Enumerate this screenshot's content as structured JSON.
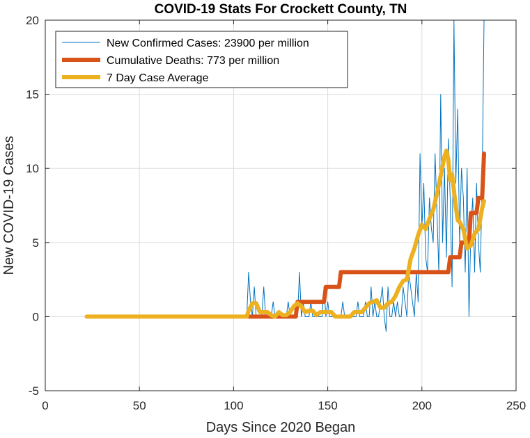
{
  "chart_data": {
    "type": "line",
    "title": "COVID-19 Stats For Crockett County, TN",
    "xlabel": "Days Since 2020 Began",
    "ylabel": "New COVID-19 Cases",
    "xlim": [
      0,
      250
    ],
    "ylim": [
      -5,
      20
    ],
    "xticks": [
      0,
      50,
      100,
      150,
      200,
      250
    ],
    "yticks": [
      -5,
      0,
      5,
      10,
      15,
      20
    ],
    "grid": true,
    "legend_position": "top-left",
    "colors": {
      "cases": "#0072BD",
      "deaths": "#D95319",
      "average": "#EDB120",
      "grid": "#dddddd",
      "axis": "#262626"
    },
    "series": [
      {
        "name": "New Confirmed Cases: 23900 per million",
        "color": "#0072BD",
        "x": [
          22,
          107,
          108,
          109,
          110,
          111,
          112,
          113,
          114,
          115,
          116,
          117,
          118,
          119,
          120,
          121,
          122,
          123,
          124,
          125,
          126,
          127,
          128,
          129,
          130,
          131,
          132,
          133,
          134,
          135,
          136,
          137,
          138,
          139,
          140,
          141,
          142,
          143,
          144,
          145,
          146,
          147,
          148,
          149,
          150,
          151,
          152,
          153,
          154,
          155,
          156,
          157,
          158,
          159,
          160,
          161,
          162,
          163,
          164,
          165,
          166,
          167,
          168,
          169,
          170,
          171,
          172,
          173,
          174,
          175,
          176,
          177,
          178,
          179,
          180,
          181,
          182,
          183,
          184,
          185,
          186,
          187,
          188,
          189,
          190,
          191,
          192,
          193,
          194,
          195,
          196,
          197,
          198,
          199,
          200,
          201,
          202,
          203,
          204,
          205,
          206,
          207,
          208,
          209,
          210,
          211,
          212,
          213,
          214,
          215,
          216,
          217,
          218,
          219,
          220,
          221,
          222,
          223,
          224,
          225,
          226,
          227,
          228,
          229,
          230,
          231,
          232,
          233
        ],
        "y": [
          0,
          0,
          3,
          1,
          0,
          2,
          0,
          0,
          0,
          0,
          2,
          0,
          0,
          0,
          0,
          1,
          0,
          0,
          0,
          0,
          0,
          0,
          0,
          1,
          0,
          0,
          0,
          0,
          0,
          3,
          0,
          1,
          0,
          0,
          0,
          1,
          0,
          0,
          0,
          0,
          0,
          0,
          2,
          0,
          1,
          0,
          0,
          0,
          0,
          0,
          0,
          0,
          1,
          0,
          0,
          0,
          0,
          0,
          0,
          0,
          1,
          0,
          0,
          0,
          1,
          0,
          0,
          2,
          0,
          1,
          0,
          0,
          1,
          2,
          0,
          -1,
          2,
          0,
          0,
          1,
          0,
          1,
          0,
          0,
          2,
          1,
          0,
          3,
          2,
          1,
          0,
          3,
          1,
          11,
          6,
          9,
          4,
          3,
          8,
          6,
          5,
          11,
          7,
          3,
          15,
          5,
          10,
          4,
          12,
          8,
          2,
          20,
          9,
          14,
          5,
          10,
          8,
          3,
          10,
          0,
          6,
          8,
          3,
          9,
          5,
          3,
          9,
          20
        ]
      },
      {
        "name": "Cumulative Deaths: 773 per million",
        "color": "#D95319",
        "x": [
          108,
          124,
          125,
          133,
          134,
          148,
          149,
          156,
          157,
          214,
          215,
          220,
          221,
          225,
          226,
          229,
          230,
          232,
          233
        ],
        "y": [
          0,
          0,
          0,
          0,
          1,
          1,
          2,
          2,
          3,
          3,
          4,
          4,
          5,
          5,
          7,
          7,
          8,
          8,
          11
        ]
      },
      {
        "name": "7 Day Case Average",
        "color": "#EDB120",
        "x": [
          22,
          107,
          108,
          110,
          112,
          114,
          116,
          118,
          120,
          122,
          124,
          126,
          128,
          130,
          132,
          134,
          136,
          138,
          140,
          142,
          144,
          146,
          148,
          150,
          152,
          154,
          156,
          158,
          160,
          162,
          164,
          166,
          168,
          170,
          172,
          174,
          176,
          178,
          180,
          182,
          184,
          186,
          188,
          190,
          192,
          194,
          196,
          198,
          200,
          202,
          204,
          206,
          208,
          210,
          212,
          213,
          214,
          215,
          216,
          218,
          219,
          220,
          222,
          224,
          226,
          228,
          230,
          232,
          233
        ],
        "y": [
          0,
          0,
          0.4,
          0.9,
          0.9,
          0.3,
          0.3,
          0.3,
          0.1,
          0,
          0.3,
          0.1,
          0.1,
          0.3,
          0.7,
          0.9,
          0.7,
          0.3,
          0.4,
          0.4,
          0.1,
          0.3,
          0.3,
          0.3,
          0.3,
          0,
          0,
          0,
          0,
          0,
          0.3,
          0.3,
          0.3,
          0.6,
          0.9,
          1,
          1.1,
          0.6,
          0.6,
          0.9,
          1,
          1.4,
          2,
          2.4,
          2.5,
          3.9,
          4.6,
          5.5,
          6.2,
          5.9,
          6.6,
          7.2,
          8.3,
          9.5,
          10.8,
          11.2,
          10.6,
          9.2,
          9.6,
          7.4,
          6.5,
          6.4,
          5.9,
          4.6,
          4.8,
          5.6,
          5.9,
          7.3,
          7.8
        ]
      }
    ]
  }
}
